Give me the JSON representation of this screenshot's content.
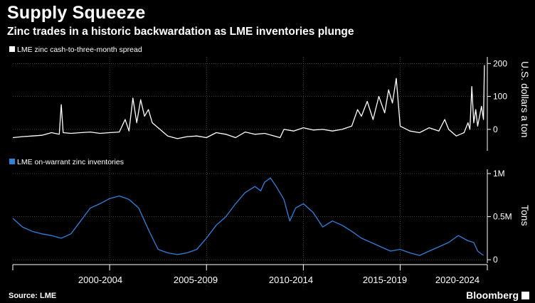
{
  "title": "Supply Squeeze",
  "subtitle": "Zinc trades in a historic backwardation as LME inventories plunge",
  "source": "Source: LME",
  "brand": "Bloomberg",
  "colors": {
    "background": "#000000",
    "spread": "#ffffff",
    "inventory": "#2f7fdd",
    "grid": "#666666"
  },
  "chart_data": [
    {
      "type": "line",
      "title": "",
      "series": [
        {
          "name": "LME zinc cash-to-three-month spread",
          "x": [
            2000.0,
            2000.5,
            2001.0,
            2001.5,
            2002.0,
            2002.4,
            2002.5,
            2002.6,
            2003.0,
            2003.5,
            2004.0,
            2004.5,
            2005.0,
            2005.5,
            2005.8,
            2006.0,
            2006.2,
            2006.4,
            2006.6,
            2006.8,
            2007.0,
            2007.2,
            2007.6,
            2008.0,
            2008.5,
            2009.0,
            2009.5,
            2010.0,
            2010.5,
            2011.0,
            2011.5,
            2012.0,
            2012.5,
            2013.0,
            2013.5,
            2013.8,
            2014.0,
            2014.5,
            2015.0,
            2015.5,
            2016.0,
            2016.5,
            2017.0,
            2017.5,
            2017.8,
            2018.0,
            2018.3,
            2018.6,
            2018.9,
            2019.2,
            2019.4,
            2019.6,
            2019.8,
            2020.0,
            2020.5,
            2021.0,
            2021.5,
            2022.0,
            2022.3,
            2022.5,
            2022.7,
            2022.9,
            2023.1,
            2023.3,
            2023.5,
            2023.6,
            2023.7,
            2023.8,
            2023.9,
            2024.0,
            2024.2,
            2024.3,
            2024.35
          ],
          "y": [
            -25,
            -22,
            -20,
            -18,
            -10,
            -15,
            75,
            -10,
            -12,
            -10,
            -8,
            -12,
            -10,
            -8,
            30,
            -5,
            95,
            20,
            90,
            40,
            60,
            20,
            0,
            -20,
            -28,
            -22,
            -20,
            -25,
            -10,
            -15,
            -25,
            -8,
            -15,
            -12,
            -20,
            -25,
            0,
            -5,
            5,
            -2,
            0,
            -5,
            0,
            10,
            60,
            40,
            85,
            30,
            100,
            50,
            120,
            80,
            155,
            10,
            -5,
            -10,
            5,
            -5,
            30,
            0,
            -10,
            -20,
            -15,
            -10,
            20,
            0,
            130,
            20,
            60,
            10,
            70,
            30,
            195
          ]
        }
      ],
      "ylabel": "U.S. dollars a ton",
      "yticks": [
        0,
        100,
        200
      ],
      "ytick_labels": [
        "0",
        "100",
        "200"
      ],
      "xlim": [
        2000,
        2024.5
      ],
      "ylim": [
        -65,
        220
      ]
    },
    {
      "type": "line",
      "title": "",
      "series": [
        {
          "name": "LME on-warrant zinc inventories",
          "x": [
            2000.0,
            2000.5,
            2001.0,
            2001.5,
            2002.0,
            2002.5,
            2003.0,
            2003.5,
            2004.0,
            2004.5,
            2005.0,
            2005.5,
            2006.0,
            2006.5,
            2007.0,
            2007.5,
            2008.0,
            2008.5,
            2009.0,
            2009.5,
            2010.0,
            2010.5,
            2011.0,
            2011.5,
            2012.0,
            2012.5,
            2012.8,
            2013.0,
            2013.3,
            2013.6,
            2014.0,
            2014.3,
            2014.6,
            2015.0,
            2015.5,
            2016.0,
            2016.5,
            2017.0,
            2017.5,
            2018.0,
            2018.5,
            2019.0,
            2019.5,
            2020.0,
            2020.5,
            2021.0,
            2021.5,
            2022.0,
            2022.5,
            2023.0,
            2023.5,
            2023.8,
            2024.0,
            2024.3
          ],
          "y": [
            480000,
            380000,
            330000,
            300000,
            280000,
            250000,
            300000,
            450000,
            600000,
            650000,
            710000,
            740000,
            700000,
            600000,
            350000,
            120000,
            80000,
            60000,
            80000,
            120000,
            250000,
            400000,
            500000,
            650000,
            780000,
            850000,
            800000,
            900000,
            950000,
            850000,
            700000,
            450000,
            600000,
            650000,
            550000,
            380000,
            450000,
            400000,
            330000,
            250000,
            200000,
            150000,
            100000,
            120000,
            80000,
            50000,
            100000,
            150000,
            200000,
            280000,
            220000,
            200000,
            100000,
            50000
          ]
        }
      ],
      "ylabel": "Tons",
      "yticks": [
        0,
        500000,
        1000000
      ],
      "ytick_labels": [
        "0",
        "0.5M",
        "1M"
      ],
      "xlim": [
        2000,
        2024.5
      ],
      "ylim": [
        -40000,
        1050000
      ]
    }
  ],
  "x_axis": {
    "labels": [
      "2000-2004",
      "2005-2009",
      "2010-2014",
      "2015-2019",
      "2020-2024"
    ]
  }
}
